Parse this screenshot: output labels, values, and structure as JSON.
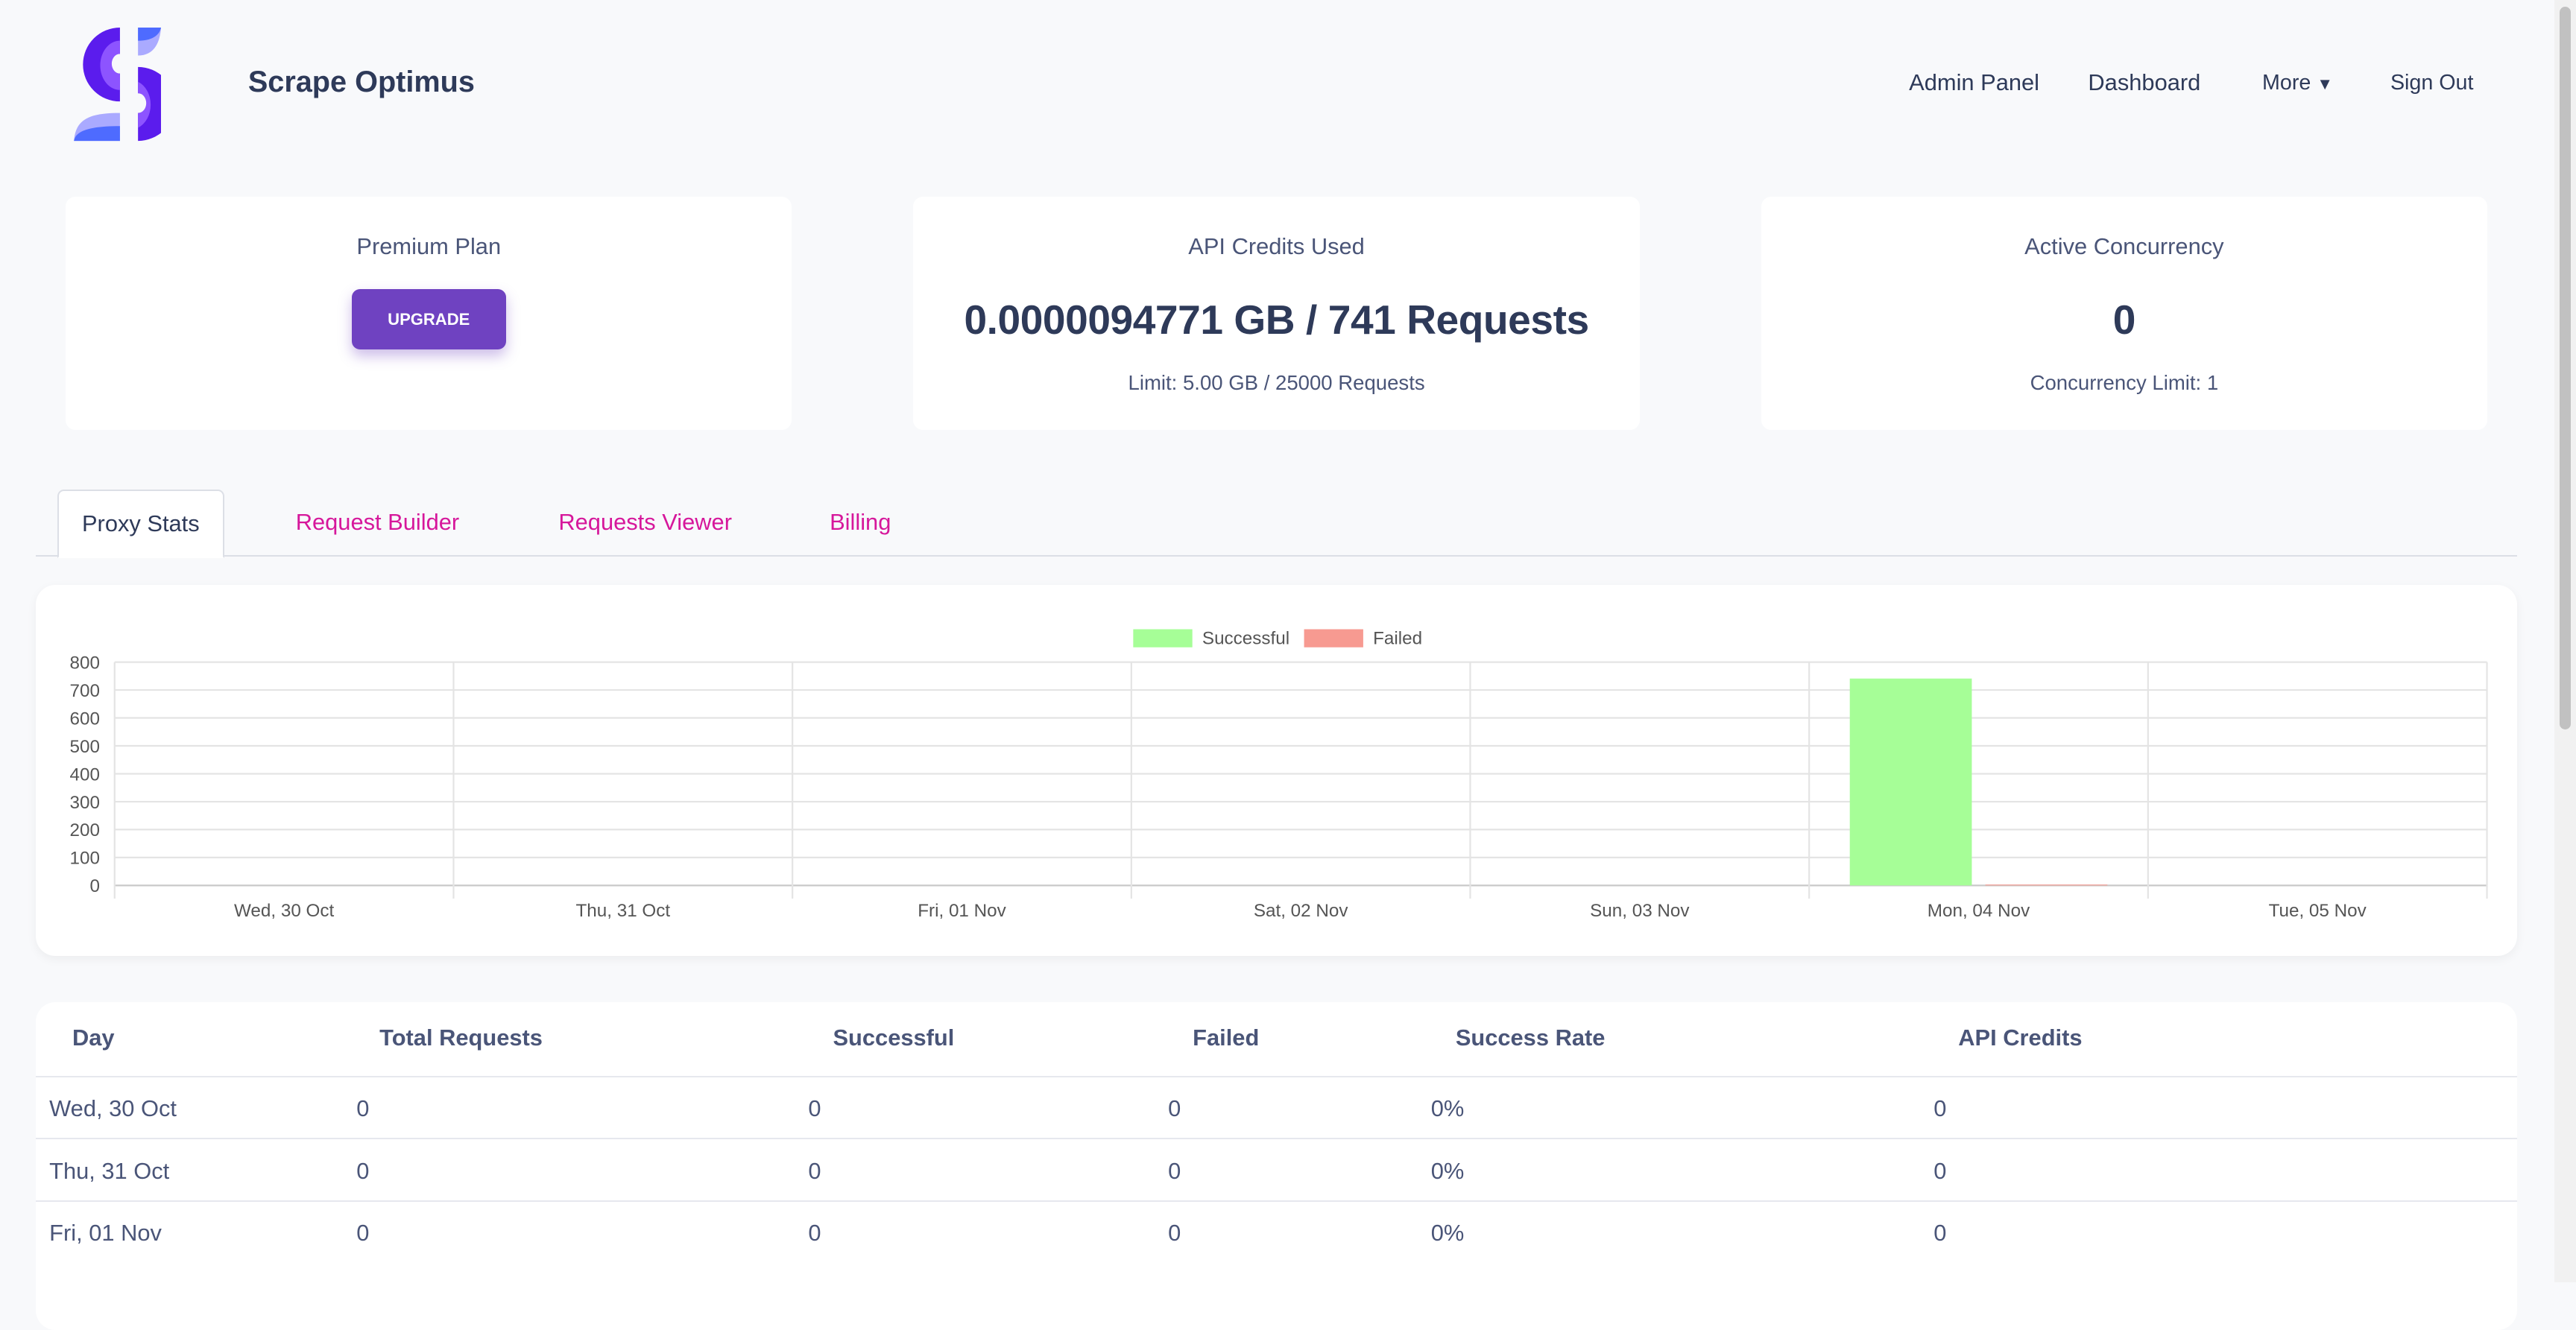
{
  "header": {
    "app_name": "Scrape Optimus",
    "nav": [
      "Admin Panel",
      "Dashboard",
      "More",
      "Sign Out"
    ]
  },
  "cards": {
    "plan": {
      "title": "Premium Plan",
      "button": "UPGRADE"
    },
    "credits": {
      "title": "API Credits Used",
      "value": "0.0000094771 GB / 741 Requests",
      "limit": "Limit: 5.00 GB / 25000 Requests"
    },
    "concurrency": {
      "title": "Active Concurrency",
      "value": "0",
      "limit": "Concurrency Limit: 1"
    }
  },
  "tabs": [
    "Proxy Stats",
    "Request Builder",
    "Requests Viewer",
    "Billing"
  ],
  "colors": {
    "accent": "#6f42c1",
    "tab_link": "#d6179b",
    "successful": "#a6fe97",
    "failed": "#f79a91"
  },
  "chart_data": {
    "type": "bar",
    "categories": [
      "Wed, 30 Oct",
      "Thu, 31 Oct",
      "Fri, 01 Nov",
      "Sat, 02 Nov",
      "Sun, 03 Nov",
      "Mon, 04 Nov",
      "Tue, 05 Nov"
    ],
    "series": [
      {
        "name": "Successful",
        "values": [
          0,
          0,
          0,
          0,
          0,
          741,
          0
        ]
      },
      {
        "name": "Failed",
        "values": [
          0,
          0,
          0,
          0,
          0,
          3,
          0
        ]
      }
    ],
    "ylim": [
      0,
      800
    ],
    "yticks": [
      0,
      100,
      200,
      300,
      400,
      500,
      600,
      700,
      800
    ],
    "grid": true,
    "legend": "top"
  },
  "table": {
    "headers": [
      "Day",
      "Total Requests",
      "Successful",
      "Failed",
      "Success Rate",
      "API Credits"
    ],
    "rows": [
      [
        "Wed, 30 Oct",
        "0",
        "0",
        "0",
        "0%",
        "0"
      ],
      [
        "Thu, 31 Oct",
        "0",
        "0",
        "0",
        "0%",
        "0"
      ],
      [
        "Fri, 01 Nov",
        "0",
        "0",
        "0",
        "0%",
        "0"
      ]
    ]
  }
}
